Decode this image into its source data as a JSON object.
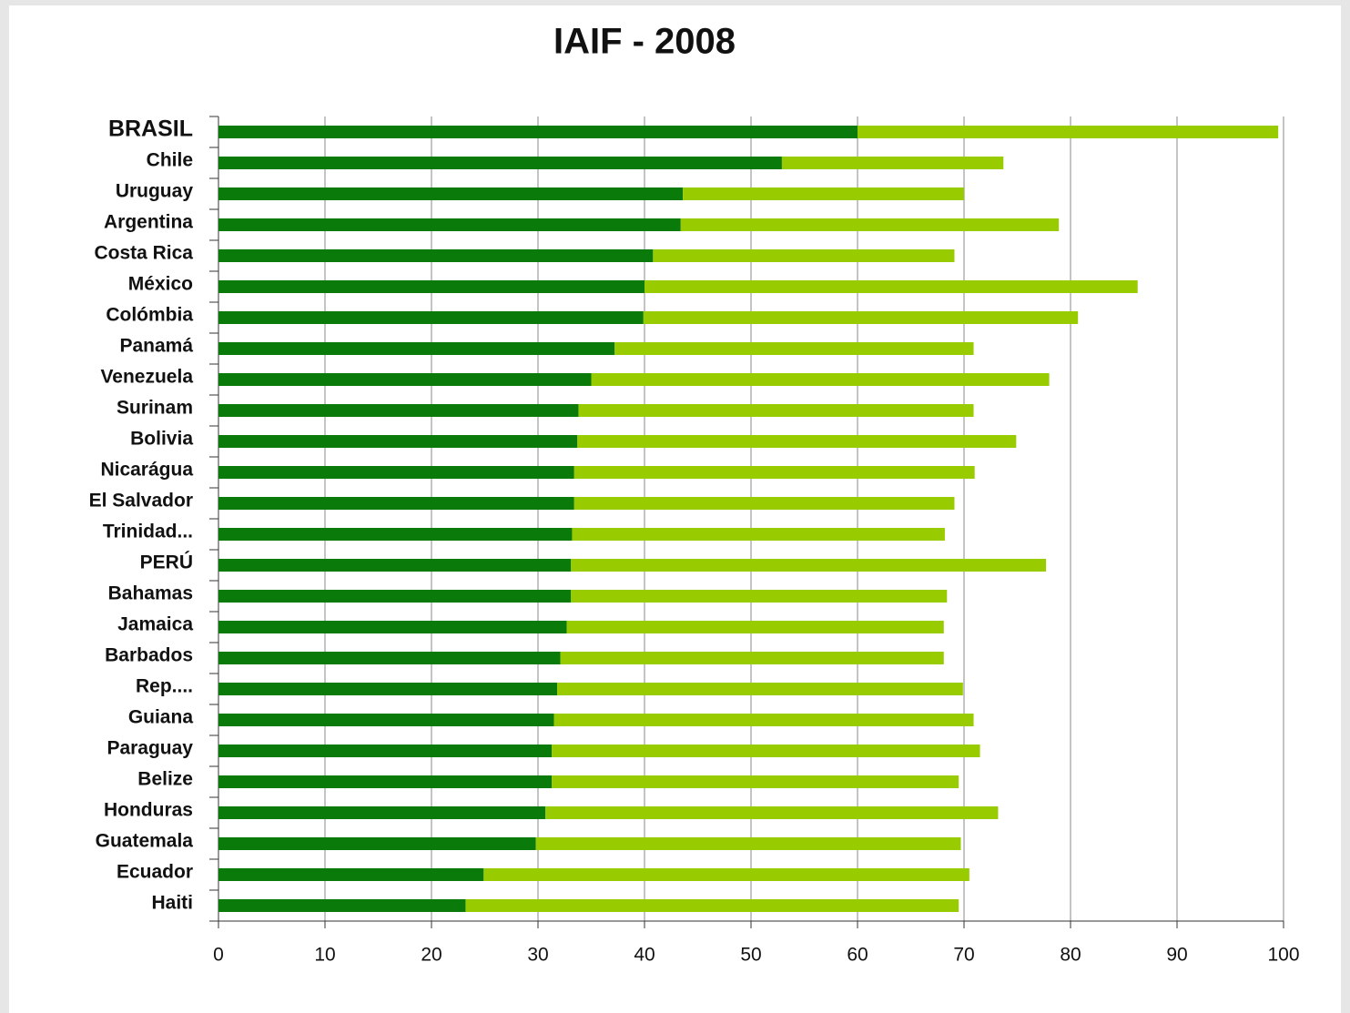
{
  "chart_data": {
    "type": "stacked-barh",
    "title": "IAIF - 2008",
    "categories": [
      "BRASIL",
      "Chile",
      "Uruguay",
      "Argentina",
      "Costa Rica",
      "México",
      "Colómbia",
      "Panamá",
      "Venezuela",
      "Surinam",
      "Bolivia",
      "Nicarágua",
      "El Salvador",
      "Trinidad...",
      "PERÚ",
      "Bahamas",
      "Jamaica",
      "Barbados",
      "Rep....",
      "Guiana",
      "Paraguay",
      "Belize",
      "Honduras",
      "Guatemala",
      "Ecuador",
      "Haiti"
    ],
    "series": [
      {
        "color": "#0a7a0a",
        "values": [
          60,
          52.9,
          43.6,
          43.4,
          40.8,
          40.0,
          39.9,
          37.2,
          35.0,
          33.8,
          33.7,
          33.4,
          33.4,
          33.2,
          33.1,
          33.1,
          32.7,
          32.1,
          31.8,
          31.5,
          31.3,
          31.3,
          30.7,
          29.8,
          24.9,
          23.2
        ]
      },
      {
        "color": "#99cc00",
        "values": [
          39.5,
          20.8,
          26.4,
          35.5,
          28.3,
          46.3,
          40.8,
          33.7,
          43.0,
          37.1,
          41.2,
          37.6,
          35.7,
          35.0,
          44.6,
          35.3,
          35.4,
          36.0,
          38.1,
          39.4,
          40.2,
          38.2,
          42.5,
          39.9,
          45.6,
          46.3
        ]
      }
    ],
    "xlim": [
      0,
      100
    ],
    "xticks": [
      0,
      10,
      20,
      30,
      40,
      50,
      60,
      70,
      80,
      90,
      100
    ],
    "grid": true
  }
}
